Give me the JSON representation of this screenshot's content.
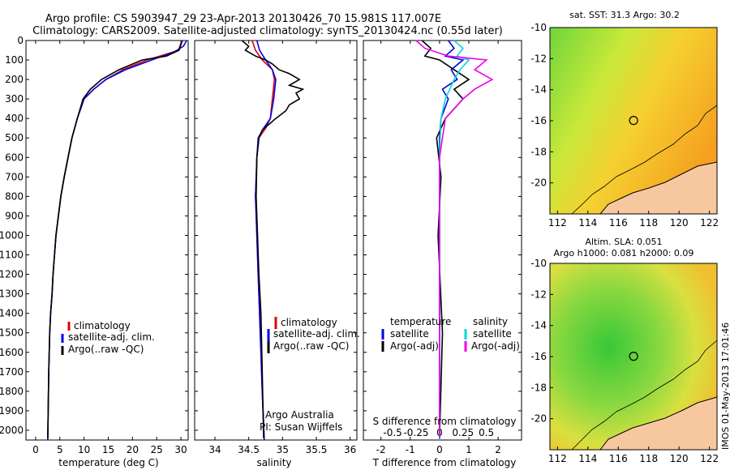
{
  "title": {
    "line1": "Argo profile: CS 5903947_29 23-Apr-2013 20130426_70 15.981S 117.007E",
    "line2": "Climatology: CARS2009. Satellite-adjusted climatology: synTS_20130424.nc (0.55d later)"
  },
  "side_stamp": "IMOS 01-May-2013 17:01:46",
  "credit": {
    "line1": "Argo Australia",
    "line2": "PI: Susan Wijffels"
  },
  "colors": {
    "climatology": "#e00000",
    "satellite": "#0000ee",
    "argo": "#000000",
    "sat_salinity": "#00d8d8",
    "argo_salinity": "#ee00ee",
    "land": "#f7c8a0"
  },
  "chart_data": [
    {
      "type": "line",
      "panel": "temperature",
      "xlabel": "temperature (deg C)",
      "ylabel": "",
      "xlim": [
        -2,
        31.5
      ],
      "ylim": [
        2050,
        0
      ],
      "xticks": [
        "0",
        "5",
        "10",
        "15",
        "20",
        "25",
        "30"
      ],
      "yticks": [
        "0",
        "100",
        "200",
        "300",
        "400",
        "500",
        "600",
        "700",
        "800",
        "900",
        "1000",
        "1100",
        "1200",
        "1300",
        "1400",
        "1500",
        "1600",
        "1700",
        "1800",
        "1900",
        "2000"
      ],
      "legend": [
        "climatology",
        "satellite-adj. clim.",
        "Argo(..raw -QC)"
      ],
      "legend_placement": "lower-center",
      "series": [
        {
          "name": "climatology",
          "color": "#e00000",
          "x": [
            30.2,
            29.5,
            27,
            23,
            18,
            14.5,
            12,
            10,
            8.6,
            7.5,
            6.7,
            5.9,
            5.2,
            4.7,
            4.2,
            3.9,
            3.6,
            3.4,
            3.1,
            2.9,
            2.7,
            2.5
          ],
          "y": [
            0,
            50,
            70,
            100,
            150,
            200,
            250,
            300,
            400,
            500,
            600,
            700,
            800,
            900,
            1000,
            1100,
            1200,
            1300,
            1400,
            1500,
            1700,
            2050
          ]
        },
        {
          "name": "satellite-adj. clim.",
          "color": "#0000ee",
          "x": [
            31.2,
            30.5,
            28.5,
            24,
            18.5,
            14.5,
            12,
            10,
            8.6,
            7.5,
            6.7,
            5.9,
            5.2,
            4.7,
            4.2,
            3.9,
            3.6,
            3.4,
            3.1,
            2.9,
            2.7,
            2.5
          ],
          "y": [
            0,
            30,
            60,
            100,
            150,
            200,
            250,
            300,
            400,
            500,
            600,
            700,
            800,
            900,
            1000,
            1100,
            1200,
            1300,
            1400,
            1500,
            1700,
            2050
          ]
        },
        {
          "name": "Argo(..raw -QC)",
          "color": "#000000",
          "x": [
            30.3,
            29.6,
            27,
            22,
            17.2,
            13.6,
            11.3,
            9.8,
            8.6,
            7.5,
            6.7,
            5.9,
            5.2,
            4.7,
            4.2,
            3.9,
            3.6,
            3.4,
            3.1,
            2.9,
            2.7,
            2.5
          ],
          "y": [
            0,
            50,
            80,
            100,
            150,
            200,
            250,
            300,
            400,
            500,
            600,
            700,
            800,
            900,
            1000,
            1100,
            1200,
            1300,
            1400,
            1500,
            1700,
            2040
          ]
        }
      ]
    },
    {
      "type": "line",
      "panel": "salinity",
      "xlabel": "salinity",
      "xlim": [
        33.7,
        36.1
      ],
      "ylim": [
        2050,
        0
      ],
      "xticks": [
        "34",
        "34.5",
        "35",
        "35.5",
        "36"
      ],
      "legend": [
        "climatology",
        "satellite-adj. clim.",
        "Argo(..raw -QC)"
      ],
      "legend_placement": "lower-right",
      "series": [
        {
          "name": "climatology",
          "color": "#e00000",
          "x": [
            34.55,
            34.6,
            34.7,
            34.85,
            34.88,
            34.85,
            34.82,
            34.75,
            34.65,
            34.62,
            34.6,
            34.62,
            34.64,
            34.66,
            34.68,
            34.7,
            34.73
          ],
          "y": [
            0,
            50,
            100,
            150,
            200,
            300,
            400,
            450,
            500,
            600,
            800,
            1000,
            1200,
            1400,
            1600,
            1800,
            2050
          ]
        },
        {
          "name": "satellite-adj. clim.",
          "color": "#0000ee",
          "x": [
            34.62,
            34.66,
            34.75,
            34.85,
            34.9,
            34.87,
            34.82,
            34.72,
            34.64,
            34.62,
            34.6,
            34.62,
            34.64,
            34.66,
            34.68,
            34.7,
            34.73
          ],
          "y": [
            0,
            50,
            100,
            150,
            200,
            300,
            400,
            450,
            500,
            600,
            800,
            1000,
            1200,
            1400,
            1600,
            1800,
            2050
          ]
        },
        {
          "name": "Argo(..raw -QC)",
          "color": "#000000",
          "x": [
            34.4,
            34.5,
            34.45,
            34.6,
            34.75,
            34.85,
            34.95,
            35.1,
            35.25,
            35.1,
            35.3,
            35.2,
            35.25,
            35.1,
            35.05,
            34.9,
            34.8,
            34.7,
            34.65,
            34.62,
            34.61,
            34.63,
            34.65,
            34.68,
            34.7,
            34.72
          ],
          "y": [
            0,
            30,
            50,
            80,
            100,
            120,
            150,
            170,
            200,
            230,
            250,
            270,
            300,
            330,
            360,
            400,
            430,
            460,
            500,
            600,
            800,
            1000,
            1200,
            1400,
            1700,
            2040
          ]
        }
      ]
    },
    {
      "type": "line",
      "panel": "difference",
      "xlabel": "T difference from climatology",
      "xlabel_top": "S difference from climatology",
      "xlim": [
        -2.6,
        2.8
      ],
      "ylim": [
        2050,
        0
      ],
      "xticks": [
        "-2",
        "-1",
        "0",
        "1",
        "2"
      ],
      "xticks_salinity": [
        "-0.5",
        "-0.25",
        "0",
        "0.25",
        "0.5"
      ],
      "legend": [
        "temperature",
        "satellite",
        "Argo(-adj)",
        "salinity",
        "satellite",
        "Argo(-adj)"
      ],
      "legend_placement": "lower-center",
      "series": [
        {
          "name": "satellite",
          "group": "temperature",
          "color": "#0000ee",
          "x": [
            0.3,
            0.5,
            0.2,
            0.8,
            0.4,
            0.6,
            0.1,
            0.3,
            0.05,
            0,
            0,
            0,
            0,
            0
          ],
          "y": [
            0,
            40,
            80,
            100,
            150,
            200,
            250,
            300,
            400,
            500,
            700,
            1000,
            1500,
            2050
          ]
        },
        {
          "name": "Argo(-adj)",
          "group": "temperature",
          "color": "#000000",
          "x": [
            -0.6,
            -0.3,
            -0.5,
            0,
            0.5,
            1,
            0.5,
            0.8,
            0.2,
            -0.1,
            0.05,
            -0.05,
            0.1,
            0
          ],
          "y": [
            0,
            40,
            80,
            100,
            150,
            200,
            250,
            300,
            400,
            500,
            700,
            1000,
            1500,
            2040
          ]
        },
        {
          "name": "satellite",
          "group": "salinity",
          "color": "#00d8d8",
          "x": [
            0.5,
            0.8,
            0.6,
            1,
            0.7,
            0.5,
            0.2,
            0.05,
            0,
            0,
            0
          ],
          "y": [
            0,
            40,
            80,
            100,
            150,
            200,
            300,
            400,
            600,
            1000,
            2050
          ]
        },
        {
          "name": "Argo(-adj)",
          "group": "salinity",
          "color": "#ee00ee",
          "x": [
            -0.8,
            -0.5,
            0.3,
            1.6,
            1.2,
            1.8,
            1.2,
            0.8,
            0.2,
            0,
            0
          ],
          "y": [
            0,
            40,
            80,
            100,
            150,
            200,
            250,
            300,
            400,
            600,
            2040
          ]
        }
      ]
    },
    {
      "type": "heatmap",
      "panel": "SST map",
      "title": "sat. SST: 31.3  Argo: 30.2",
      "xlim": [
        111.5,
        122.5
      ],
      "ylim": [
        -22,
        -10
      ],
      "xticks": [
        "112",
        "114",
        "116",
        "118",
        "120",
        "122"
      ],
      "yticks": [
        "-10",
        "-12",
        "-14",
        "-16",
        "-18",
        "-20"
      ],
      "marker": {
        "lon": 117.007,
        "lat": -15.981
      }
    },
    {
      "type": "heatmap",
      "panel": "SLA map",
      "title": "Altim. SLA: 0.051",
      "subtitle": "Argo h1000: 0.081 h2000: 0.09",
      "xlim": [
        111.5,
        122.5
      ],
      "ylim": [
        -22,
        -10
      ],
      "xticks": [
        "112",
        "114",
        "116",
        "118",
        "120",
        "122"
      ],
      "yticks": [
        "-10",
        "-12",
        "-14",
        "-16",
        "-18",
        "-20"
      ],
      "marker": {
        "lon": 117.007,
        "lat": -15.981
      }
    }
  ]
}
